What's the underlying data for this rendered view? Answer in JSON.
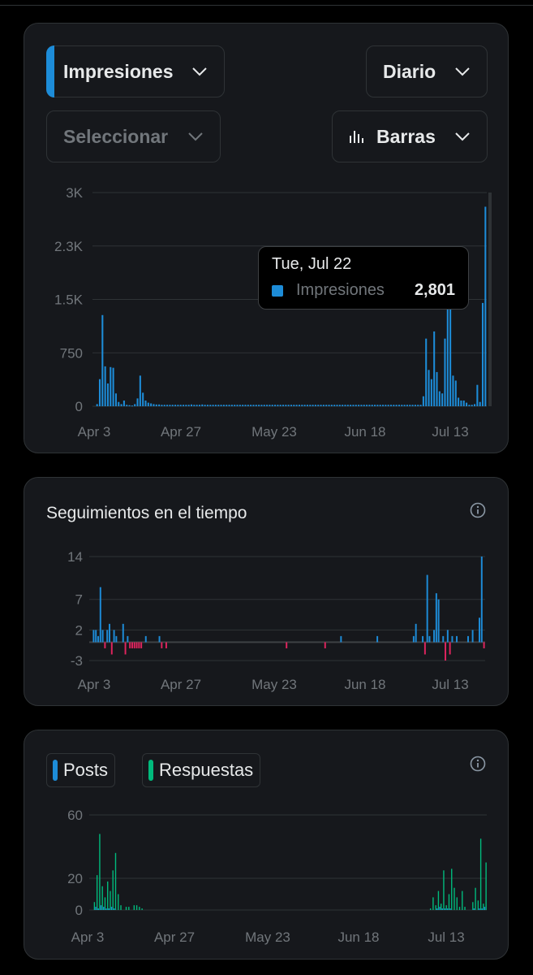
{
  "impressions_card": {
    "metric_select": "Impresiones",
    "period_select": "Diario",
    "compare_select": "Seleccionar",
    "chart_type_select": "Barras",
    "tooltip": {
      "date": "Tue, Jul 22",
      "label": "Impresiones",
      "value": "2,801"
    }
  },
  "follows_card": {
    "title": "Seguimientos en el tiempo"
  },
  "posts_card": {
    "legend": [
      "Posts",
      "Respuestas"
    ]
  },
  "colors": {
    "blue": "#1d8cd8",
    "red": "#e0245e",
    "green": "#00ba7c",
    "grid": "#2f3336",
    "axis_text": "#71767b"
  },
  "chart_data": [
    {
      "type": "bar",
      "title": "",
      "ylim": [
        0,
        3000
      ],
      "y_ticks": [
        "3K",
        "2.3K",
        "1.5K",
        "750",
        "0"
      ],
      "x_tick_labels": [
        "Apr 3",
        "Apr 27",
        "May 23",
        "Jun 18",
        "Jul 13"
      ],
      "series": [
        {
          "name": "Impresiones",
          "values": [
            30,
            380,
            1280,
            560,
            320,
            550,
            540,
            180,
            60,
            30,
            80,
            20,
            15,
            10,
            30,
            110,
            430,
            190,
            80,
            50,
            40,
            30,
            25,
            25,
            20,
            20,
            20,
            20,
            20,
            20,
            20,
            20,
            20,
            20,
            20,
            25,
            20,
            20,
            20,
            25,
            20,
            20,
            20,
            20,
            20,
            20,
            20,
            20,
            20,
            20,
            20,
            20,
            20,
            20,
            20,
            20,
            20,
            20,
            20,
            20,
            20,
            20,
            20,
            20,
            20,
            20,
            20,
            20,
            20,
            20,
            20,
            20,
            20,
            20,
            20,
            20,
            20,
            20,
            20,
            20,
            20,
            20,
            20,
            20,
            20,
            20,
            20,
            20,
            20,
            20,
            20,
            20,
            20,
            20,
            20,
            20,
            20,
            20,
            20,
            20,
            20,
            20,
            20,
            20,
            20,
            20,
            20,
            20,
            20,
            20,
            20,
            20,
            20,
            20,
            20,
            20,
            20,
            20,
            20,
            20,
            20,
            140,
            950,
            510,
            380,
            1050,
            480,
            210,
            180,
            950,
            1680,
            1400,
            430,
            360,
            120,
            80,
            80,
            50,
            20,
            20,
            30,
            300,
            60,
            1450,
            2801
          ]
        }
      ]
    },
    {
      "type": "bar",
      "title": "Seguimientos en el tiempo",
      "ylim": [
        -3,
        14
      ],
      "y_ticks": [
        "14",
        "7",
        "2",
        "-3"
      ],
      "x_tick_labels": [
        "Apr 3",
        "Apr 27",
        "May 23",
        "Jun 18",
        "Jul 13"
      ],
      "series": [
        {
          "name": "Seguimientos",
          "values": [
            2,
            2,
            1,
            9,
            2,
            -1,
            2,
            3,
            -2,
            2,
            1,
            0,
            0,
            3,
            -2,
            1,
            -1,
            -1,
            -1,
            -1,
            -1,
            -1,
            0,
            1,
            0,
            0,
            0,
            0,
            0,
            1,
            -1,
            0,
            -1,
            0,
            0,
            0,
            0,
            0,
            0,
            0,
            0,
            0,
            0,
            0,
            0,
            0,
            0,
            0,
            0,
            0,
            0,
            0,
            0,
            0,
            0,
            0,
            0,
            0,
            0,
            0,
            0,
            0,
            0,
            0,
            0,
            0,
            0,
            0,
            0,
            0,
            0,
            0,
            0,
            0,
            0,
            0,
            0,
            0,
            0,
            0,
            0,
            0,
            0,
            0,
            0,
            -1,
            0,
            0,
            0,
            0,
            0,
            0,
            0,
            0,
            0,
            0,
            0,
            0,
            0,
            0,
            0,
            0,
            -1,
            0,
            0,
            0,
            0,
            0,
            0,
            1,
            0,
            0,
            0,
            0,
            0,
            0,
            0,
            0,
            0,
            0,
            0,
            0,
            0,
            0,
            0,
            1,
            0,
            0,
            0,
            0,
            0,
            0,
            0,
            0,
            0,
            0,
            0,
            0,
            0,
            0,
            0,
            1,
            3,
            0,
            0,
            1,
            -2,
            11,
            1,
            0,
            2,
            8,
            7,
            0,
            1,
            -3,
            2,
            -2,
            1,
            0,
            1,
            0,
            0,
            0,
            0,
            1,
            0,
            2,
            0,
            0,
            4,
            14,
            -1
          ]
        }
      ]
    },
    {
      "type": "bar",
      "title": "",
      "ylim": [
        0,
        60
      ],
      "y_ticks": [
        "60",
        "20",
        "0"
      ],
      "x_tick_labels": [
        "Apr 3",
        "Apr 27",
        "May 23",
        "Jun 18",
        "Jul 13"
      ],
      "series": [
        {
          "name": "Posts",
          "values": [
            0,
            2,
            1,
            3,
            2,
            1,
            1,
            2,
            1,
            0,
            0,
            0,
            0,
            0,
            0,
            0,
            0,
            0,
            0,
            0,
            0,
            0,
            0,
            0,
            0,
            0,
            0,
            0,
            0,
            0,
            0,
            0,
            0,
            0,
            0,
            0,
            0,
            0,
            0,
            0,
            0,
            0,
            0,
            0,
            0,
            0,
            0,
            0,
            0,
            0,
            0,
            0,
            0,
            0,
            0,
            0,
            0,
            0,
            0,
            0,
            0,
            0,
            0,
            0,
            0,
            0,
            0,
            0,
            0,
            0,
            0,
            0,
            0,
            0,
            0,
            0,
            0,
            0,
            0,
            0,
            0,
            0,
            0,
            0,
            0,
            0,
            0,
            0,
            0,
            0,
            0,
            0,
            0,
            0,
            0,
            0,
            0,
            0,
            0,
            0,
            0,
            0,
            0,
            0,
            0,
            0,
            0,
            0,
            0,
            0,
            0,
            0,
            0,
            0,
            0,
            0,
            0,
            0,
            0,
            0,
            0,
            0,
            0,
            0,
            0,
            0,
            0,
            0,
            0,
            0,
            1,
            2,
            1,
            1,
            1,
            1,
            0,
            0,
            0,
            0,
            0,
            0,
            0,
            0,
            1,
            0,
            1,
            1,
            2
          ]
        },
        {
          "name": "Respuestas",
          "values": [
            5,
            22,
            48,
            15,
            8,
            18,
            12,
            25,
            36,
            10,
            3,
            0,
            2,
            2,
            0,
            3,
            3,
            2,
            1,
            0,
            0,
            0,
            0,
            0,
            0,
            0,
            0,
            0,
            0,
            0,
            0,
            0,
            0,
            0,
            0,
            0,
            0,
            0,
            0,
            0,
            0,
            0,
            0,
            0,
            0,
            0,
            0,
            0,
            0,
            0,
            0,
            0,
            0,
            0,
            0,
            0,
            0,
            0,
            0,
            0,
            0,
            0,
            0,
            0,
            0,
            0,
            0,
            0,
            0,
            0,
            0,
            0,
            0,
            0,
            0,
            0,
            0,
            0,
            0,
            0,
            0,
            0,
            0,
            0,
            0,
            0,
            0,
            0,
            0,
            0,
            0,
            0,
            0,
            0,
            0,
            0,
            0,
            0,
            0,
            0,
            0,
            0,
            0,
            0,
            0,
            0,
            0,
            0,
            0,
            0,
            0,
            0,
            0,
            0,
            0,
            0,
            0,
            0,
            0,
            0,
            0,
            0,
            0,
            0,
            0,
            0,
            0,
            1,
            8,
            3,
            12,
            4,
            25,
            3,
            10,
            26,
            14,
            8,
            2,
            12,
            2,
            0,
            0,
            5,
            14,
            6,
            45,
            4,
            30
          ]
        }
      ]
    }
  ]
}
